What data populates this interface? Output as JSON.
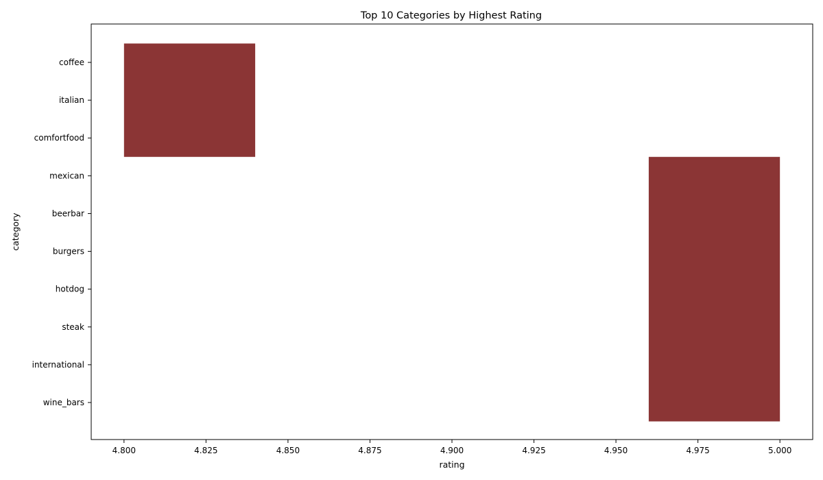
{
  "chart_data": {
    "type": "bar",
    "orientation": "horizontal",
    "title": "Top 10 Categories by Highest Rating",
    "xlabel": "rating",
    "ylabel": "category",
    "categories": [
      "coffee",
      "italian",
      "comfortfood",
      "mexican",
      "beerbar",
      "burgers",
      "hotdog",
      "steak",
      "international",
      "wine_bars"
    ],
    "values": [
      4.84,
      4.84,
      4.84,
      5.0,
      5.0,
      5.0,
      5.0,
      5.0,
      5.0,
      5.0
    ],
    "bar_start": [
      4.8,
      4.8,
      4.8,
      4.96,
      4.96,
      4.96,
      4.96,
      4.96,
      4.96,
      4.96
    ],
    "xlim": [
      4.79,
      5.01
    ],
    "xticks": [
      "4.800",
      "4.825",
      "4.850",
      "4.875",
      "4.900",
      "4.925",
      "4.950",
      "4.975",
      "5.000"
    ],
    "grid": false,
    "bar_color": "#8b3535"
  }
}
